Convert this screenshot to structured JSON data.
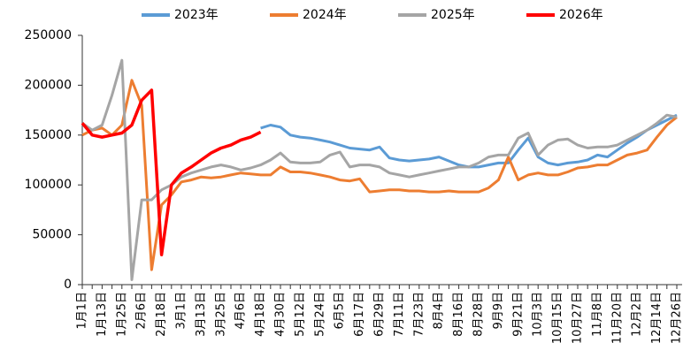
{
  "chart_data": {
    "type": "line",
    "categories": [
      "1月1日",
      null,
      "1月13日",
      null,
      "1月25日",
      null,
      "2月6日",
      null,
      "2月18日",
      null,
      "3月1日",
      null,
      "3月13日",
      null,
      "3月25日",
      null,
      "4月6日",
      null,
      "4月18日",
      null,
      "4月30日",
      null,
      "5月12日",
      null,
      "5月24日",
      null,
      "6月5日",
      null,
      "6月17日",
      null,
      "6月29日",
      null,
      "7月11日",
      null,
      "7月23日",
      null,
      "8月4日",
      null,
      "8月16日",
      null,
      "8月28日",
      null,
      "9月9日",
      null,
      "9月21日",
      null,
      "10月3日",
      null,
      "10月15日",
      null,
      "10月27日",
      null,
      "11月8日",
      null,
      "11月20日",
      null,
      "12月2日",
      null,
      "12月14日",
      null,
      "12月26日"
    ],
    "ylim": [
      0,
      250000
    ],
    "yticks": [
      0,
      50000,
      100000,
      150000,
      200000,
      250000
    ],
    "series": [
      {
        "name": "2023年",
        "color": "#5b9bd5",
        "values": [
          null,
          null,
          null,
          null,
          null,
          null,
          null,
          null,
          null,
          null,
          null,
          null,
          null,
          null,
          null,
          null,
          null,
          null,
          157000,
          160000,
          158000,
          150000,
          148000,
          147000,
          145000,
          143000,
          140000,
          137000,
          136000,
          135000,
          138000,
          127000,
          125000,
          124000,
          125000,
          126000,
          128000,
          124000,
          120000,
          118000,
          118000,
          120000,
          122000,
          122000,
          135000,
          147000,
          128000,
          122000,
          120000,
          122000,
          123000,
          125000,
          130000,
          128000,
          135000,
          142000,
          148000,
          155000,
          160000,
          165000,
          170000
        ]
      },
      {
        "name": "2024年",
        "color": "#ed7d31",
        "values": [
          150000,
          155000,
          157000,
          150000,
          160000,
          205000,
          180000,
          15000,
          80000,
          90000,
          103000,
          105000,
          108000,
          107000,
          108000,
          110000,
          112000,
          111000,
          110000,
          110000,
          118000,
          113000,
          113000,
          112000,
          110000,
          108000,
          105000,
          104000,
          106000,
          93000,
          94000,
          95000,
          95000,
          94000,
          94000,
          93000,
          93000,
          94000,
          93000,
          93000,
          93000,
          97000,
          105000,
          128000,
          105000,
          110000,
          112000,
          110000,
          110000,
          113000,
          117000,
          118000,
          120000,
          120000,
          125000,
          130000,
          132000,
          135000,
          148000,
          160000,
          168000
        ]
      },
      {
        "name": "2025年",
        "color": "#a5a5a5",
        "values": [
          162000,
          155000,
          160000,
          190000,
          225000,
          5000,
          85000,
          85000,
          95000,
          100000,
          108000,
          112000,
          115000,
          118000,
          120000,
          118000,
          115000,
          117000,
          120000,
          125000,
          132000,
          123000,
          122000,
          122000,
          123000,
          130000,
          133000,
          118000,
          120000,
          120000,
          118000,
          112000,
          110000,
          108000,
          110000,
          112000,
          114000,
          116000,
          118000,
          118000,
          122000,
          128000,
          130000,
          130000,
          147000,
          152000,
          130000,
          140000,
          145000,
          146000,
          140000,
          137000,
          138000,
          138000,
          140000,
          145000,
          150000,
          155000,
          162000,
          170000,
          168000
        ]
      },
      {
        "name": "2026年",
        "color": "#ff0000",
        "values": [
          162000,
          150000,
          148000,
          150000,
          152000,
          160000,
          185000,
          195000,
          30000,
          100000,
          112000,
          118000,
          125000,
          132000,
          137000,
          140000,
          145000,
          148000,
          153000,
          null,
          null,
          null,
          null,
          null,
          null,
          null,
          null,
          null,
          null,
          null,
          null,
          null,
          null,
          null,
          null,
          null,
          null,
          null,
          null,
          null,
          null,
          null,
          null,
          null,
          null,
          null,
          null,
          null,
          null,
          null,
          null,
          null,
          null,
          null,
          null,
          null,
          null,
          null,
          null,
          null,
          null
        ]
      }
    ]
  }
}
